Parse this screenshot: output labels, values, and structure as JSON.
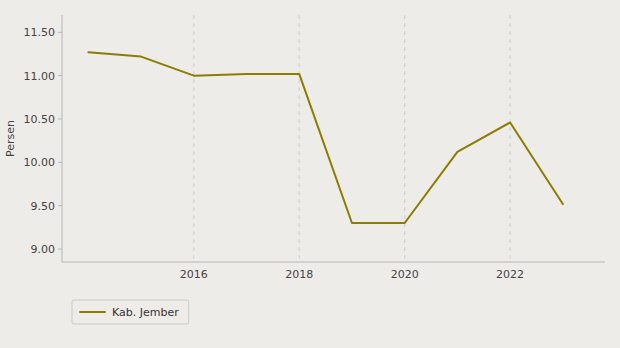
{
  "chart_data": {
    "type": "line",
    "y_label": "Persen",
    "x": [
      2014,
      2015,
      2016,
      2017,
      2018,
      2019,
      2020,
      2021,
      2022,
      2023
    ],
    "series": [
      {
        "name": "Kab. Jember",
        "color": "#8B7D00",
        "values": [
          11.27,
          11.22,
          11.0,
          11.02,
          11.02,
          9.3,
          9.3,
          10.12,
          10.46,
          9.52
        ]
      }
    ],
    "xlim": [
      2013.5,
      2023.8
    ],
    "xticks": [
      2016,
      2018,
      2020,
      2022
    ],
    "ylim": [
      8.85,
      11.7
    ],
    "yticks": [
      {
        "value": 9.0,
        "label": "9.00"
      },
      {
        "value": 9.5,
        "label": "9.50"
      },
      {
        "value": 10.0,
        "label": "10.00"
      },
      {
        "value": 10.5,
        "label": "10.50"
      },
      {
        "value": 11.0,
        "label": "11.00"
      },
      {
        "value": 11.5,
        "label": "11.50"
      }
    ],
    "grid": "x",
    "legend": "bottom"
  }
}
